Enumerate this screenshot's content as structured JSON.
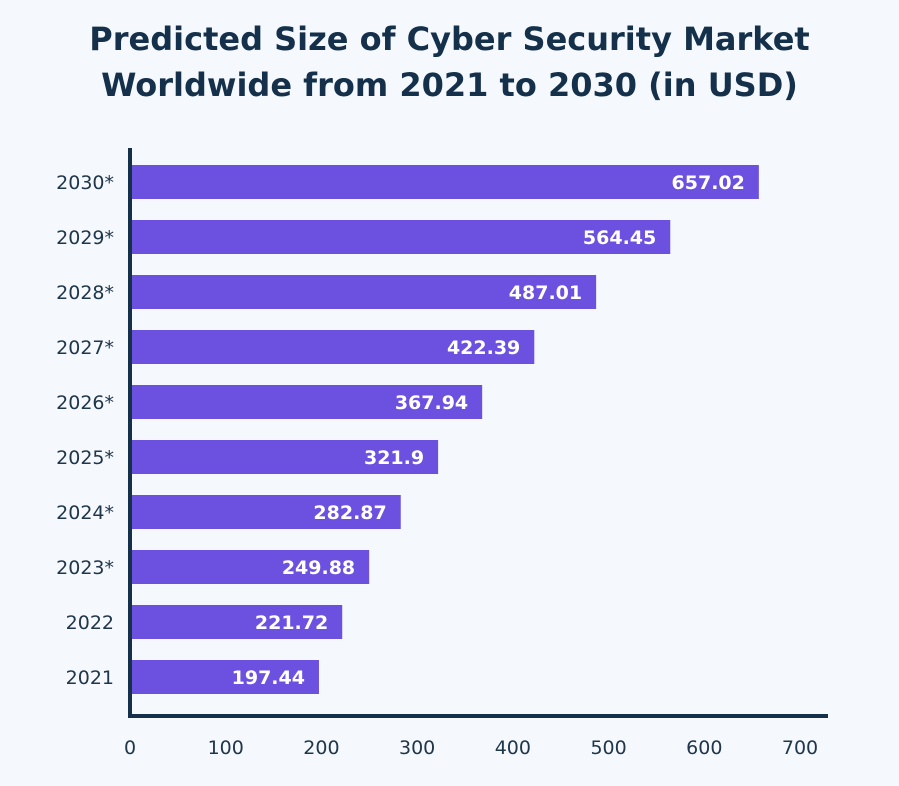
{
  "chart_data": {
    "type": "bar",
    "orientation": "horizontal",
    "title": "Predicted Size of Cyber Security Market Worldwide from 2021 to 2030 (in USD)",
    "xlabel": "",
    "ylabel": "",
    "categories": [
      "2030*",
      "2029*",
      "2028*",
      "2027*",
      "2026*",
      "2025*",
      "2024*",
      "2023*",
      "2022",
      "2021"
    ],
    "values": [
      657.02,
      564.45,
      487.01,
      422.39,
      367.94,
      321.9,
      282.87,
      249.88,
      221.72,
      197.44
    ],
    "data_labels": [
      "657.02",
      "564.45",
      "487.01",
      "422.39",
      "367.94",
      "321.9",
      "282.87",
      "249.88",
      "221.72",
      "197.44"
    ],
    "xlim": [
      0,
      700
    ],
    "x_ticks": [
      0,
      100,
      200,
      300,
      400,
      500,
      600,
      700
    ],
    "grid": false,
    "legend": "none",
    "colors": {
      "bar": "#6c51e0",
      "axis": "#14304a",
      "title": "#14304a",
      "background": "#f5f9fd"
    }
  }
}
